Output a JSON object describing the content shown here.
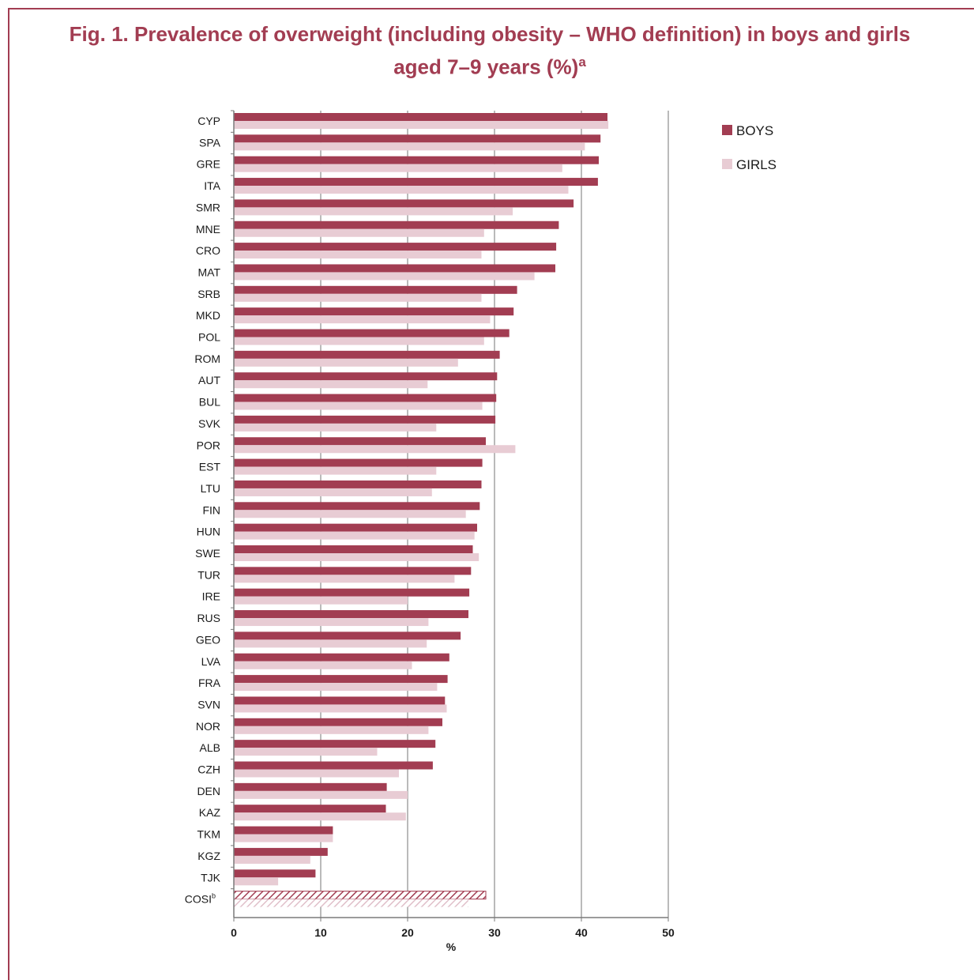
{
  "figure": {
    "title_line1": "Fig. 1. Prevalence of overweight (including obesity – WHO definition) in boys and girls",
    "title_line2": "aged 7–9 years (%)",
    "title_sup": "a"
  },
  "colors": {
    "boys": "#a23d52",
    "girls": "#e8ccd4",
    "title": "#a23d52",
    "grid": "#8c8c8c"
  },
  "chart_data": {
    "type": "bar",
    "orientation": "horizontal",
    "categories": [
      "CYP",
      "SPA",
      "GRE",
      "ITA",
      "SMR",
      "MNE",
      "CRO",
      "MAT",
      "SRB",
      "MKD",
      "POL",
      "ROM",
      "AUT",
      "BUL",
      "SVK",
      "POR",
      "EST",
      "LTU",
      "FIN",
      "HUN",
      "SWE",
      "TUR",
      "IRE",
      "RUS",
      "GEO",
      "LVA",
      "FRA",
      "SVN",
      "NOR",
      "ALB",
      "CZH",
      "DEN",
      "KAZ",
      "TKM",
      "KGZ",
      "TJK",
      "COSI"
    ],
    "category_superscripts": {
      "COSI": "b"
    },
    "hatched_categories": [
      "COSI"
    ],
    "series": [
      {
        "name": "BOYS",
        "values": [
          43.0,
          42.2,
          42.0,
          41.9,
          39.1,
          37.4,
          37.1,
          37.0,
          32.6,
          32.2,
          31.7,
          30.6,
          30.3,
          30.2,
          30.1,
          29.0,
          28.6,
          28.5,
          28.3,
          28.0,
          27.5,
          27.3,
          27.1,
          27.0,
          26.1,
          24.8,
          24.6,
          24.3,
          24.0,
          23.2,
          22.9,
          17.6,
          17.5,
          11.4,
          10.8,
          9.4,
          29.0
        ]
      },
      {
        "name": "GIRLS",
        "values": [
          43.1,
          40.4,
          37.8,
          38.5,
          32.1,
          28.8,
          28.5,
          34.6,
          28.5,
          29.5,
          28.8,
          25.8,
          22.3,
          28.6,
          23.3,
          32.4,
          23.3,
          22.8,
          26.7,
          27.7,
          28.2,
          25.4,
          20.0,
          22.4,
          22.2,
          20.5,
          23.4,
          24.5,
          22.4,
          16.5,
          19.0,
          20.0,
          19.8,
          11.4,
          8.8,
          5.1,
          27.0
        ]
      }
    ],
    "xlim": [
      0,
      50
    ],
    "xticks": [
      "0",
      "10",
      "20",
      "30",
      "40",
      "50"
    ],
    "xlabel": "%",
    "ylabel": "",
    "grid": "vertical",
    "legend_position": "top-right"
  }
}
